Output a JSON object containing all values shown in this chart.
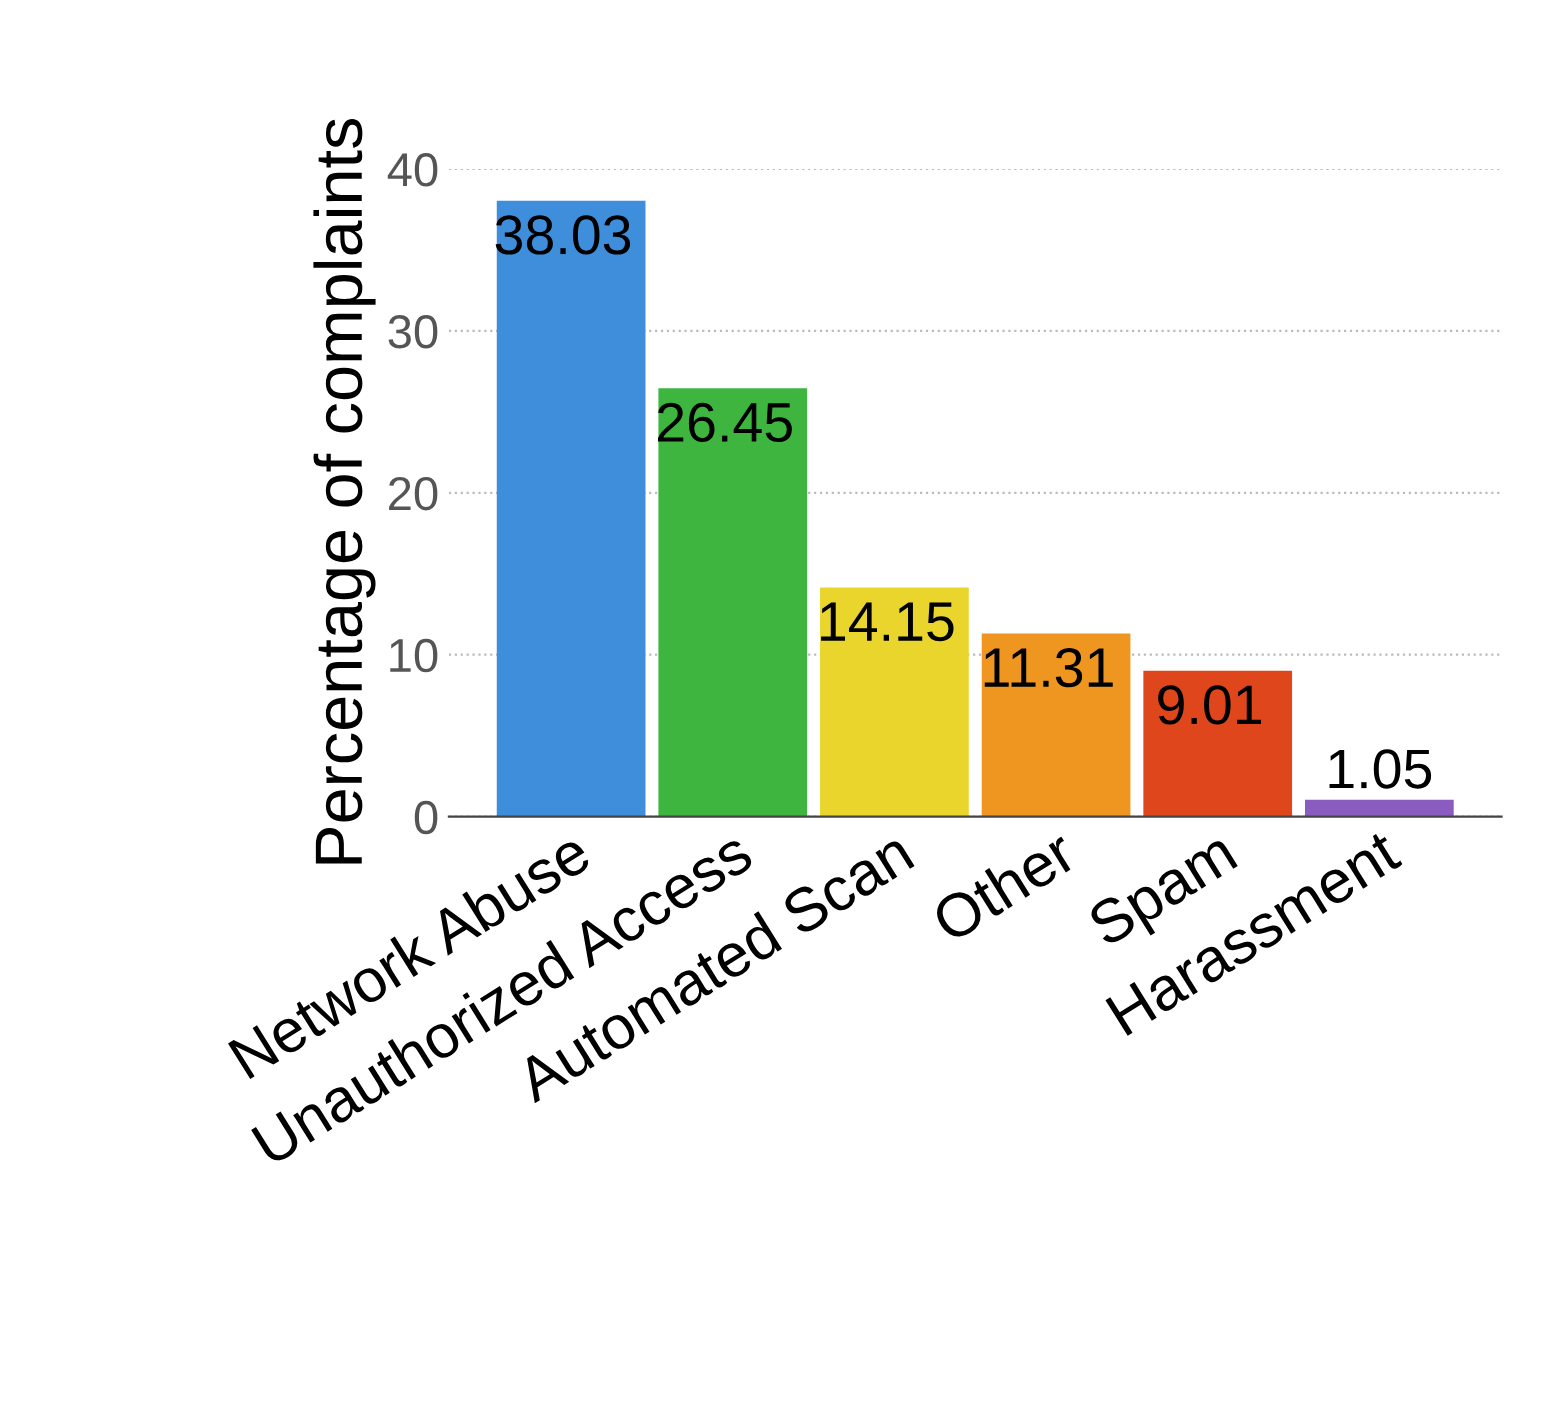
{
  "chart_data": {
    "type": "bar",
    "ylabel": "Percentage of complaints",
    "categories": [
      "Network Abuse",
      "Unauthorized Access",
      "Automated Scan",
      "Other",
      "Spam",
      "Harassment"
    ],
    "values": [
      38.03,
      26.45,
      14.15,
      11.31,
      9.01,
      1.05
    ],
    "colors": [
      "#3f8edb",
      "#3db53f",
      "#e9d52c",
      "#ee961f",
      "#e0461c",
      "#8a5cc0"
    ],
    "ylim": [
      0,
      40
    ],
    "yticks": [
      0,
      10,
      20,
      30,
      40
    ],
    "grid": "y",
    "data_labels": true
  }
}
